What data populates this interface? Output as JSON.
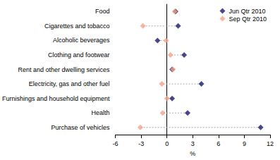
{
  "chart_data": {
    "type": "dot",
    "orientation": "horizontal",
    "categories": [
      "Food",
      "Cigarettes and tobacco",
      "Alcoholic beverages",
      "Clothing and footwear",
      "Rent and other dwelling services",
      "Electricity, gas and other fuel",
      "Furnishings and household equipment",
      "Health",
      "Purchase of vehicles"
    ],
    "series": [
      {
        "name": "Jun Qtr 2010",
        "color": "#1c1c6b",
        "marker": "diamond",
        "values": [
          1.0,
          1.3,
          -1.1,
          2.0,
          0.6,
          4.0,
          0.6,
          2.4,
          10.9
        ]
      },
      {
        "name": "Sep Qtr 2010",
        "color": "#f4a383",
        "marker": "diamond",
        "values": [
          0.9,
          -2.8,
          -0.1,
          0.4,
          0.7,
          -0.6,
          0.0,
          -0.5,
          -3.1
        ]
      }
    ],
    "xlabel": "%",
    "xlim": [
      -6,
      12
    ],
    "xticks": [
      -6,
      -3,
      0,
      3,
      6,
      9,
      12
    ],
    "grid": false,
    "legend": "upper right"
  }
}
